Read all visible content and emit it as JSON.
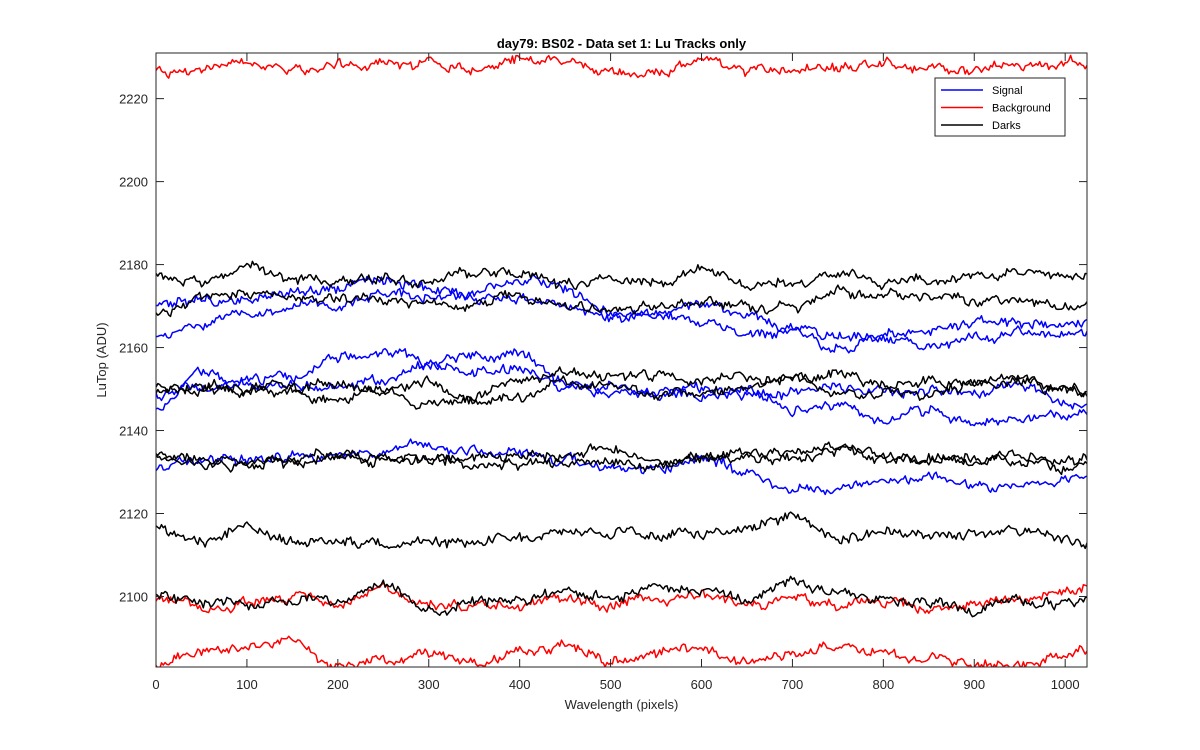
{
  "chart_data": {
    "type": "line",
    "title": "day79: BS02 - Data set 1: Lu Tracks only",
    "xlabel": "Wavelength (pixels)",
    "ylabel": "LuTop (ADU)",
    "xlim": [
      0,
      1024
    ],
    "ylim": [
      2083,
      2231
    ],
    "xticks": [
      0,
      100,
      200,
      300,
      400,
      500,
      600,
      700,
      800,
      900,
      1000
    ],
    "yticks": [
      2100,
      2120,
      2140,
      2160,
      2180,
      2200,
      2220
    ],
    "grid": false,
    "legend_position": "top-right",
    "x": [
      0,
      50,
      100,
      150,
      200,
      250,
      300,
      350,
      400,
      450,
      500,
      550,
      600,
      650,
      700,
      750,
      800,
      850,
      900,
      950,
      1000,
      1024
    ],
    "series": [
      {
        "name": "Signal",
        "color": "#0000ff",
        "values": [
          2170,
          2171,
          2172,
          2173,
          2174,
          2176,
          2175,
          2172,
          2172,
          2170,
          2167,
          2168,
          2170,
          2168,
          2165,
          2163,
          2163,
          2164,
          2166,
          2166,
          2166,
          2166
        ]
      },
      {
        "name": "Signal",
        "color": "#0000ff",
        "values": [
          2162,
          2166,
          2168,
          2170,
          2171,
          2173,
          2172,
          2173,
          2176,
          2174,
          2168,
          2168,
          2166,
          2163,
          2163,
          2160,
          2162,
          2160,
          2162,
          2164,
          2163,
          2164
        ]
      },
      {
        "name": "Signal",
        "color": "#0000ff",
        "values": [
          2148,
          2151,
          2152,
          2153,
          2158,
          2159,
          2157,
          2158,
          2158,
          2151,
          2149,
          2149,
          2150,
          2148,
          2149,
          2150,
          2149,
          2150,
          2149,
          2151,
          2147,
          2146
        ]
      },
      {
        "name": "Signal",
        "color": "#0000ff",
        "values": [
          2145,
          2154,
          2151,
          2150,
          2151,
          2152,
          2156,
          2154,
          2155,
          2151,
          2150,
          2148,
          2149,
          2150,
          2145,
          2146,
          2142,
          2145,
          2142,
          2143,
          2144,
          2145
        ]
      },
      {
        "name": "Signal",
        "color": "#0000ff",
        "values": [
          2131,
          2133,
          2133,
          2134,
          2134,
          2135,
          2137,
          2135,
          2134,
          2133,
          2131,
          2131,
          2133,
          2130,
          2126,
          2126,
          2128,
          2128,
          2126,
          2127,
          2128,
          2129
        ]
      },
      {
        "name": "Background",
        "color": "#ff0000",
        "values": [
          2227,
          2227,
          2228,
          2227,
          2228,
          2228,
          2228,
          2227,
          2229,
          2229,
          2226,
          2227,
          2229,
          2227,
          2227,
          2228,
          2228,
          2228,
          2227,
          2228,
          2228,
          2228
        ]
      },
      {
        "name": "Background",
        "color": "#ff0000",
        "values": [
          2100,
          2098,
          2098,
          2100,
          2098,
          2102,
          2098,
          2098,
          2098,
          2099,
          2098,
          2099,
          2100,
          2098,
          2099,
          2098,
          2099,
          2097,
          2098,
          2099,
          2101,
          2102
        ]
      },
      {
        "name": "Background",
        "color": "#ff0000",
        "values": [
          2084,
          2087,
          2088,
          2089,
          2083,
          2085,
          2086,
          2084,
          2086,
          2088,
          2084,
          2087,
          2088,
          2084,
          2086,
          2088,
          2086,
          2085,
          2084,
          2084,
          2086,
          2087
        ]
      },
      {
        "name": "Darks",
        "color": "#000000",
        "values": [
          2178,
          2176,
          2179,
          2176,
          2176,
          2177,
          2176,
          2178,
          2178,
          2175,
          2176,
          2176,
          2178,
          2175,
          2176,
          2178,
          2176,
          2176,
          2177,
          2178,
          2177,
          2178
        ]
      },
      {
        "name": "Darks",
        "color": "#000000",
        "values": [
          2168,
          2172,
          2173,
          2172,
          2172,
          2172,
          2170,
          2171,
          2172,
          2170,
          2169,
          2170,
          2171,
          2170,
          2170,
          2174,
          2173,
          2172,
          2171,
          2171,
          2170,
          2170
        ]
      },
      {
        "name": "Darks",
        "color": "#000000",
        "values": [
          2151,
          2150,
          2150,
          2151,
          2151,
          2149,
          2146,
          2148,
          2152,
          2154,
          2153,
          2153,
          2152,
          2153,
          2152,
          2153,
          2151,
          2152,
          2152,
          2153,
          2150,
          2150
        ]
      },
      {
        "name": "Darks",
        "color": "#000000",
        "values": [
          2149,
          2151,
          2150,
          2149,
          2148,
          2150,
          2151,
          2147,
          2148,
          2152,
          2151,
          2149,
          2149,
          2150,
          2153,
          2149,
          2149,
          2148,
          2151,
          2152,
          2150,
          2149
        ]
      },
      {
        "name": "Darks",
        "color": "#000000",
        "values": [
          2134,
          2133,
          2133,
          2132,
          2133,
          2133,
          2133,
          2132,
          2132,
          2133,
          2132,
          2131,
          2134,
          2133,
          2133,
          2135,
          2134,
          2133,
          2132,
          2133,
          2132,
          2132
        ]
      },
      {
        "name": "Darks",
        "color": "#000000",
        "values": [
          2133,
          2132,
          2132,
          2133,
          2134,
          2134,
          2133,
          2133,
          2134,
          2134,
          2136,
          2132,
          2133,
          2134,
          2135,
          2136,
          2133,
          2133,
          2134,
          2134,
          2131,
          2133
        ]
      },
      {
        "name": "Darks",
        "color": "#000000",
        "values": [
          2117,
          2113,
          2117,
          2113,
          2114,
          2112,
          2113,
          2113,
          2114,
          2116,
          2115,
          2115,
          2115,
          2116,
          2119,
          2114,
          2115,
          2115,
          2115,
          2116,
          2114,
          2113
        ]
      },
      {
        "name": "Darks",
        "color": "#000000",
        "values": [
          2100,
          2099,
          2098,
          2099,
          2099,
          2103,
          2096,
          2099,
          2100,
          2101,
          2100,
          2102,
          2102,
          2100,
          2103,
          2101,
          2099,
          2098,
          2096,
          2099,
          2098,
          2099
        ]
      }
    ],
    "legend": [
      {
        "label": "Signal",
        "color": "#0000ff"
      },
      {
        "label": "Background",
        "color": "#ff0000"
      },
      {
        "label": "Darks",
        "color": "#000000"
      }
    ]
  }
}
